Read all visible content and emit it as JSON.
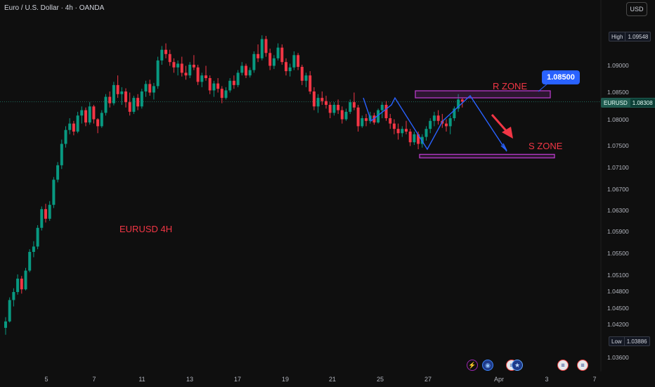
{
  "header": {
    "symbol_title": "Euro / U.S. Dollar · 4h · OANDA",
    "currency_button": "USD"
  },
  "price_axis": {
    "labels": [
      "1.09000",
      "1.08500",
      "1.08000",
      "1.07500",
      "1.07100",
      "1.06700",
      "1.06300",
      "1.05900",
      "1.05500",
      "1.05100",
      "1.04800",
      "1.04500",
      "1.04200",
      "1.03600"
    ],
    "high_tag": {
      "label": "High",
      "value": "1.09548"
    },
    "current_tag": {
      "label": "EURUSD",
      "value": "1.08308"
    },
    "low_tag": {
      "label": "Low",
      "value": "1.03886"
    }
  },
  "time_axis": {
    "labels": [
      "5",
      "7",
      "11",
      "13",
      "17",
      "19",
      "21",
      "25",
      "27",
      "Apr",
      "3",
      "7"
    ]
  },
  "annotations": {
    "chart_label": "EURUSD 4H",
    "r_zone": "R ZONE",
    "s_zone": "S ZONE",
    "target_callout": "1.08500"
  },
  "colors": {
    "background": "#0f0f0f",
    "bull": "#089981",
    "bear": "#f23645",
    "zone": "#b63ac7",
    "pattern_line": "#2962ff",
    "arrow": "#f23645",
    "annotation_text": "#f23645"
  },
  "chart_data": {
    "type": "candlestick",
    "symbol": "EURUSD",
    "timeframe": "4h",
    "ylim": [
      1.0343,
      1.0997
    ],
    "x_labels": [
      "5",
      "7",
      "11",
      "13",
      "17",
      "19",
      "21",
      "25",
      "27",
      "Apr",
      "3",
      "7"
    ],
    "candles_ohlc": [
      [
        1.0408,
        1.0428,
        1.0395,
        1.042
      ],
      [
        1.042,
        1.0465,
        1.0418,
        1.046
      ],
      [
        1.046,
        1.0482,
        1.0448,
        1.0475
      ],
      [
        1.0475,
        1.0508,
        1.047,
        1.05
      ],
      [
        1.05,
        1.0505,
        1.0472,
        1.048
      ],
      [
        1.048,
        1.052,
        1.0478,
        1.0515
      ],
      [
        1.0515,
        1.0555,
        1.0512,
        1.055
      ],
      [
        1.055,
        1.057,
        1.054,
        1.056
      ],
      [
        1.056,
        1.06,
        1.0555,
        1.0595
      ],
      [
        1.0595,
        1.0635,
        1.059,
        1.063
      ],
      [
        1.063,
        1.064,
        1.0605,
        1.0612
      ],
      [
        1.0612,
        1.0645,
        1.0608,
        1.0638
      ],
      [
        1.0638,
        1.069,
        1.0632,
        1.0685
      ],
      [
        1.0685,
        1.0718,
        1.068,
        1.0712
      ],
      [
        1.0712,
        1.076,
        1.0705,
        1.0752
      ],
      [
        1.0752,
        1.0785,
        1.0745,
        1.0778
      ],
      [
        1.0778,
        1.08,
        1.077,
        1.079
      ],
      [
        1.079,
        1.0795,
        1.0768,
        1.0775
      ],
      [
        1.0775,
        1.0812,
        1.0772,
        1.0805
      ],
      [
        1.0805,
        1.0822,
        1.079,
        1.0815
      ],
      [
        1.0815,
        1.082,
        1.0785,
        1.0792
      ],
      [
        1.0792,
        1.083,
        1.0788,
        1.0822
      ],
      [
        1.0822,
        1.0825,
        1.079,
        1.0798
      ],
      [
        1.0798,
        1.08,
        1.0772,
        1.0785
      ],
      [
        1.0785,
        1.0815,
        1.0782,
        1.081
      ],
      [
        1.081,
        1.0845,
        1.0805,
        1.084
      ],
      [
        1.084,
        1.085,
        1.082,
        1.0828
      ],
      [
        1.0828,
        1.0868,
        1.0824,
        1.0862
      ],
      [
        1.0862,
        1.088,
        1.0838,
        1.0845
      ],
      [
        1.0845,
        1.0858,
        1.0825,
        1.085
      ],
      [
        1.085,
        1.0856,
        1.082,
        1.083
      ],
      [
        1.083,
        1.0848,
        1.0805,
        1.0812
      ],
      [
        1.0812,
        1.0842,
        1.0808,
        1.0838
      ],
      [
        1.0838,
        1.0845,
        1.0815,
        1.0822
      ],
      [
        1.0822,
        1.0855,
        1.0818,
        1.085
      ],
      [
        1.085,
        1.087,
        1.084,
        1.0864
      ],
      [
        1.0864,
        1.0872,
        1.0842,
        1.0848
      ],
      [
        1.0848,
        1.0866,
        1.0835,
        1.086
      ],
      [
        1.086,
        1.0915,
        1.0855,
        1.0908
      ],
      [
        1.0908,
        1.0935,
        1.09,
        1.0928
      ],
      [
        1.0928,
        1.094,
        1.0912,
        1.092
      ],
      [
        1.092,
        1.0928,
        1.0898,
        1.0905
      ],
      [
        1.0905,
        1.0912,
        1.0885,
        1.0895
      ],
      [
        1.0895,
        1.0908,
        1.088,
        1.0902
      ],
      [
        1.0902,
        1.0915,
        1.0878,
        1.0885
      ],
      [
        1.0885,
        1.0898,
        1.0872,
        1.088
      ],
      [
        1.088,
        1.0905,
        1.0875,
        1.09
      ],
      [
        1.09,
        1.0918,
        1.089,
        1.0895
      ],
      [
        1.0895,
        1.09,
        1.0862,
        1.0868
      ],
      [
        1.0868,
        1.0885,
        1.0858,
        1.088
      ],
      [
        1.088,
        1.0898,
        1.087,
        1.0875
      ],
      [
        1.0875,
        1.088,
        1.0845,
        1.0852
      ],
      [
        1.0852,
        1.087,
        1.084,
        1.0865
      ],
      [
        1.0865,
        1.0875,
        1.0848,
        1.0855
      ],
      [
        1.0855,
        1.086,
        1.0828,
        1.0838
      ],
      [
        1.0838,
        1.0858,
        1.0835,
        1.0852
      ],
      [
        1.0852,
        1.0875,
        1.0848,
        1.087
      ],
      [
        1.087,
        1.088,
        1.0855,
        1.0862
      ],
      [
        1.0862,
        1.089,
        1.0858,
        1.0885
      ],
      [
        1.0885,
        1.0905,
        1.088,
        1.0898
      ],
      [
        1.0898,
        1.0902,
        1.0875,
        1.088
      ],
      [
        1.088,
        1.0895,
        1.0876,
        1.089
      ],
      [
        1.089,
        1.0925,
        1.0885,
        1.092
      ],
      [
        1.092,
        1.0938,
        1.0905,
        1.0912
      ],
      [
        1.0912,
        1.0955,
        1.0908,
        1.0948
      ],
      [
        1.0948,
        1.0954,
        1.0915,
        1.0922
      ],
      [
        1.0922,
        1.093,
        1.089,
        1.0898
      ],
      [
        1.0898,
        1.0918,
        1.0892,
        1.0912
      ],
      [
        1.0912,
        1.094,
        1.0908,
        1.0932
      ],
      [
        1.0932,
        1.0938,
        1.09,
        1.0905
      ],
      [
        1.0905,
        1.0912,
        1.088,
        1.0888
      ],
      [
        1.0888,
        1.0902,
        1.0878,
        1.0895
      ],
      [
        1.0895,
        1.0925,
        1.089,
        1.0918
      ],
      [
        1.0918,
        1.0922,
        1.089,
        1.0896
      ],
      [
        1.0896,
        1.09,
        1.0862,
        1.087
      ],
      [
        1.087,
        1.0885,
        1.0858,
        1.088
      ],
      [
        1.088,
        1.0888,
        1.0845,
        1.085
      ],
      [
        1.085,
        1.0858,
        1.0815,
        1.0822
      ],
      [
        1.0822,
        1.0845,
        1.081,
        1.0838
      ],
      [
        1.0838,
        1.085,
        1.0825,
        1.0832
      ],
      [
        1.0832,
        1.0842,
        1.0818,
        1.0825
      ],
      [
        1.0825,
        1.083,
        1.08,
        1.081
      ],
      [
        1.081,
        1.083,
        1.0805,
        1.0825
      ],
      [
        1.0825,
        1.0835,
        1.0808,
        1.0815
      ],
      [
        1.0815,
        1.0822,
        1.079,
        1.0798
      ],
      [
        1.0798,
        1.0818,
        1.0795,
        1.0812
      ],
      [
        1.0812,
        1.0835,
        1.0808,
        1.083
      ],
      [
        1.083,
        1.0848,
        1.0815,
        1.082
      ],
      [
        1.082,
        1.0825,
        1.0775,
        1.0785
      ],
      [
        1.0785,
        1.0805,
        1.0782,
        1.08
      ],
      [
        1.08,
        1.0808,
        1.0785,
        1.0795
      ],
      [
        1.0795,
        1.0812,
        1.079,
        1.0805
      ],
      [
        1.0805,
        1.081,
        1.0788,
        1.0792
      ],
      [
        1.0792,
        1.0818,
        1.079,
        1.0815
      ],
      [
        1.0815,
        1.083,
        1.08,
        1.0825
      ],
      [
        1.0825,
        1.0832,
        1.0795,
        1.08
      ],
      [
        1.08,
        1.0808,
        1.078,
        1.079
      ],
      [
        1.079,
        1.0798,
        1.077,
        1.078
      ],
      [
        1.078,
        1.079,
        1.076,
        1.0772
      ],
      [
        1.0772,
        1.0785,
        1.0765,
        1.078
      ],
      [
        1.078,
        1.0795,
        1.077,
        1.0775
      ],
      [
        1.0775,
        1.078,
        1.0748,
        1.0755
      ],
      [
        1.0755,
        1.0775,
        1.075,
        1.077
      ],
      [
        1.077,
        1.0775,
        1.0742,
        1.0752
      ],
      [
        1.0752,
        1.077,
        1.0745,
        1.0765
      ],
      [
        1.0765,
        1.0785,
        1.0758,
        1.078
      ],
      [
        1.078,
        1.08,
        1.0772,
        1.0795
      ],
      [
        1.0795,
        1.0812,
        1.0785,
        1.0805
      ],
      [
        1.0805,
        1.0815,
        1.0788,
        1.0795
      ],
      [
        1.0795,
        1.0808,
        1.0782,
        1.079
      ],
      [
        1.079,
        1.0798,
        1.0775,
        1.0785
      ],
      [
        1.0785,
        1.0805,
        1.077,
        1.08
      ],
      [
        1.08,
        1.0822,
        1.0795,
        1.0818
      ],
      [
        1.0818,
        1.0845,
        1.0812,
        1.0835
      ],
      [
        1.0835,
        1.0838,
        1.082,
        1.0831
      ]
    ],
    "r_zone": {
      "label": "R ZONE",
      "price": 1.0846
    },
    "s_zone": {
      "label": "S ZONE",
      "price": 1.0735
    },
    "target_callout": 1.085,
    "high": 1.09548,
    "low": 1.03886,
    "last": 1.08308
  }
}
